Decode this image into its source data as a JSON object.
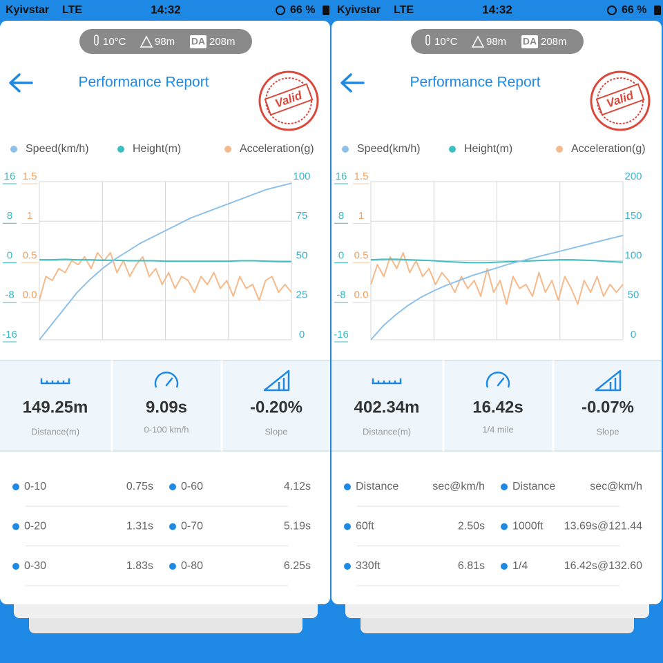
{
  "screens": [
    {
      "status": {
        "carrier": "Kyivstar",
        "network": "LTE",
        "time": "14:32",
        "battery": "66 %"
      },
      "conditions": {
        "temperature": "10°C",
        "altitude": "98m",
        "da_badge": "DA",
        "density_altitude": "208m"
      },
      "header": {
        "title": "Performance Report",
        "stamp": "Valid"
      },
      "chart_data": {
        "type": "line",
        "ylim": [
          -16,
          16
        ],
        "yticks": [
          16,
          8,
          0,
          -8,
          -16
        ],
        "y3lim": [
          -0.5,
          1.5
        ],
        "y3ticks": [
          1.5,
          1,
          0.5,
          {
            "value": 0,
            "label": "0.0"
          }
        ],
        "y2lim": [
          0,
          100
        ],
        "y2ticks": [
          100,
          75,
          50,
          25,
          0
        ],
        "grid": true,
        "series": [
          {
            "name": "Speed(km/h)",
            "color": "#8ec1ea",
            "axis": "y2",
            "values": [
              0,
              10,
              20,
              30,
              38,
              45,
              51,
              56,
              61,
              65,
              69,
              73,
              77,
              80,
              83,
              86,
              89,
              92,
              95,
              97,
              99
            ]
          },
          {
            "name": "Height(m)",
            "color": "#3cbfc0",
            "axis": "y",
            "values": [
              0.2,
              0.2,
              0.3,
              0.2,
              0.2,
              0.1,
              0.1,
              0,
              0,
              0,
              -0.1,
              -0.1,
              -0.1,
              -0.1,
              -0.1,
              -0.1,
              0,
              0,
              -0.1,
              -0.2,
              -0.2
            ]
          },
          {
            "name": "Acceleration(g)",
            "color": "#f5b98a",
            "axis": "y3",
            "values": [
              0.0,
              0.3,
              0.25,
              0.4,
              0.35,
              0.5,
              0.45,
              0.55,
              0.4,
              0.6,
              0.5,
              0.6,
              0.35,
              0.5,
              0.3,
              0.45,
              0.55,
              0.3,
              0.4,
              0.2,
              0.35,
              0.15,
              0.3,
              0.25,
              0.1,
              0.3,
              0.2,
              0.35,
              0.15,
              0.25,
              0.05,
              0.3,
              0.15,
              0.2,
              0.0,
              0.25,
              0.3,
              0.1,
              0.2,
              0.1
            ]
          }
        ]
      },
      "stats": [
        {
          "value": "149.25m",
          "label": "Distance(m)"
        },
        {
          "value": "9.09s",
          "label": "0-100 km/h"
        },
        {
          "value": "-0.20%",
          "label": "Slope"
        }
      ],
      "table": {
        "rows": [
          [
            "0-10",
            "0.75s",
            "0-60",
            "4.12s"
          ],
          [
            "0-20",
            "1.31s",
            "0-70",
            "5.19s"
          ],
          [
            "0-30",
            "1.83s",
            "0-80",
            "6.25s"
          ]
        ]
      }
    },
    {
      "status": {
        "carrier": "Kyivstar",
        "network": "LTE",
        "time": "14:32",
        "battery": "66 %"
      },
      "conditions": {
        "temperature": "10°C",
        "altitude": "98m",
        "da_badge": "DA",
        "density_altitude": "208m"
      },
      "header": {
        "title": "Performance Report",
        "stamp": "Valid"
      },
      "chart_data": {
        "type": "line",
        "ylim": [
          -16,
          16
        ],
        "yticks": [
          16,
          8,
          0,
          -8,
          -16
        ],
        "y3lim": [
          -0.5,
          1.5
        ],
        "y3ticks": [
          1.5,
          1,
          0.5,
          {
            "value": 0,
            "label": "0.0"
          }
        ],
        "y2lim": [
          0,
          200
        ],
        "y2ticks": [
          200,
          150,
          100,
          50,
          0
        ],
        "grid": true,
        "series": [
          {
            "name": "Speed(km/h)",
            "color": "#8ec1ea",
            "axis": "y2",
            "values": [
              0,
              18,
              32,
              44,
              54,
              62,
              69,
              75,
              81,
              86,
              91,
              96,
              100,
              104,
              108,
              112,
              116,
              120,
              124,
              128,
              132
            ]
          },
          {
            "name": "Height(m)",
            "color": "#3cbfc0",
            "axis": "y",
            "values": [
              0.2,
              0.3,
              0.3,
              0.2,
              0.1,
              0,
              -0.2,
              -0.3,
              -0.4,
              -0.4,
              -0.3,
              -0.2,
              -0.1,
              0,
              0.1,
              0.2,
              0.2,
              0.1,
              0,
              -0.2,
              -0.3
            ]
          },
          {
            "name": "Acceleration(g)",
            "color": "#f5b98a",
            "axis": "y3",
            "values": [
              0.2,
              0.45,
              0.3,
              0.55,
              0.4,
              0.6,
              0.35,
              0.5,
              0.3,
              0.4,
              0.2,
              0.35,
              0.25,
              0.1,
              0.3,
              0.15,
              0.25,
              0.05,
              0.4,
              0.1,
              0.25,
              -0.05,
              0.3,
              0.15,
              0.2,
              0.05,
              0.35,
              0.1,
              0.25,
              0.0,
              0.3,
              0.15,
              -0.05,
              0.25,
              0.1,
              0.3,
              0.05,
              0.2,
              0.1,
              0.2
            ]
          }
        ]
      },
      "stats": [
        {
          "value": "402.34m",
          "label": "Distance(m)"
        },
        {
          "value": "16.42s",
          "label": "1/4 mile"
        },
        {
          "value": "-0.07%",
          "label": "Slope"
        }
      ],
      "table": {
        "rows": [
          [
            "Distance",
            "sec@km/h",
            "Distance",
            "sec@km/h"
          ],
          [
            "60ft",
            "2.50s",
            "1000ft",
            "13.69s@121.44"
          ],
          [
            "330ft",
            "6.81s",
            "1/4",
            "16.42s@132.60"
          ]
        ]
      }
    }
  ]
}
